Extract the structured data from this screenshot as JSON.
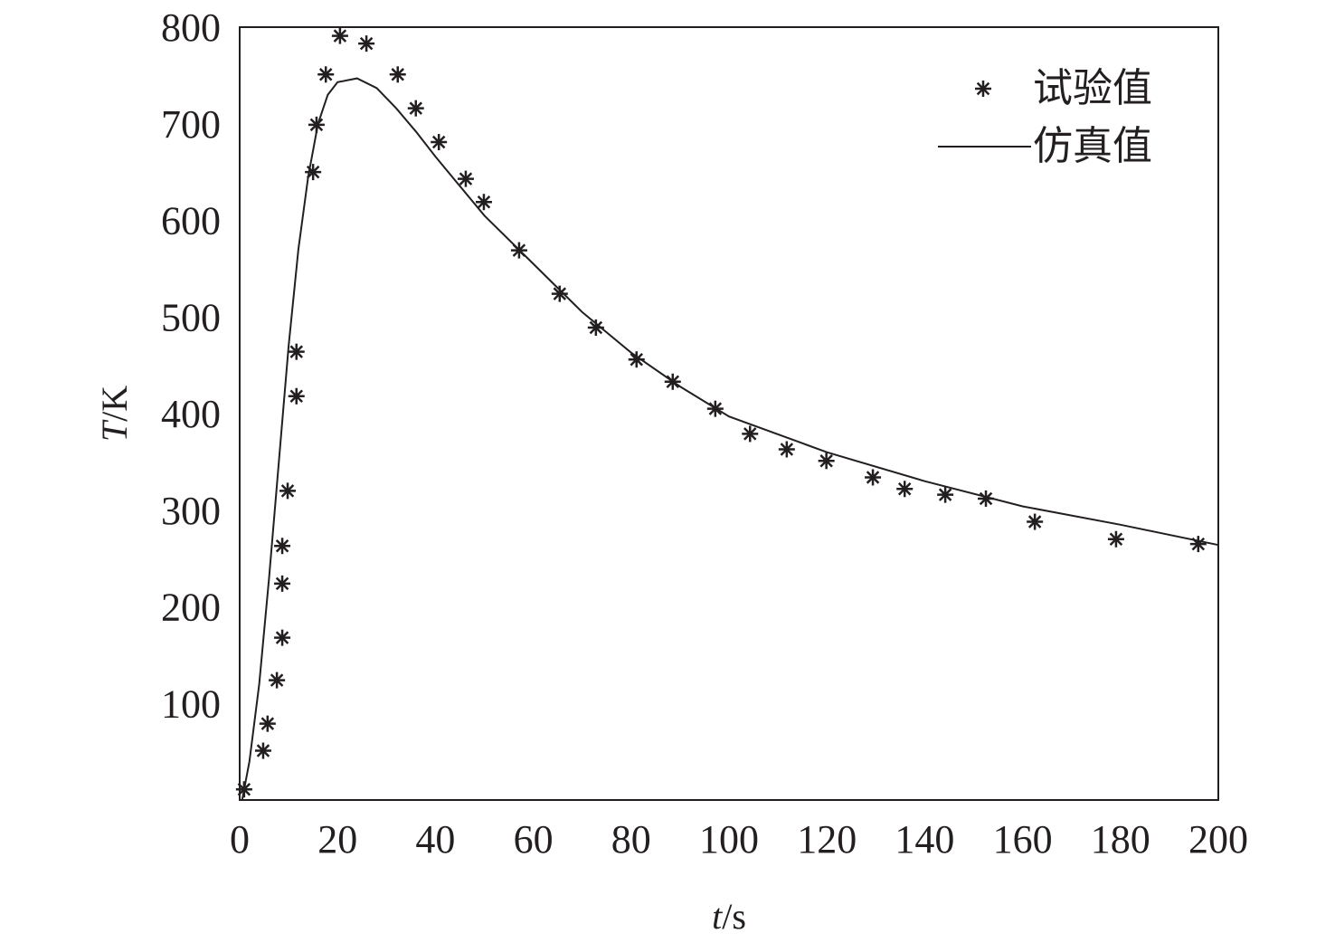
{
  "chart_data": {
    "type": "scatter+line",
    "xlabel_italic": "t",
    "xlabel_unit": "/s",
    "ylabel_italic": "T",
    "ylabel_unit": "/K",
    "xlim": [
      0,
      200
    ],
    "ylim": [
      0,
      800
    ],
    "x_ticks": [
      0,
      20,
      40,
      60,
      80,
      100,
      120,
      140,
      160,
      180,
      200
    ],
    "y_ticks": [
      100,
      200,
      300,
      400,
      500,
      600,
      700,
      800
    ],
    "grid": false,
    "legend_position": "top-right",
    "color": "#231f20",
    "series": [
      {
        "name": "试验值",
        "type": "scatter",
        "marker": "asterisk",
        "points": [
          [
            0.9,
            11
          ],
          [
            4.8,
            51
          ],
          [
            5.7,
            79
          ],
          [
            7.6,
            124
          ],
          [
            8.7,
            168
          ],
          [
            8.7,
            224
          ],
          [
            8.7,
            263
          ],
          [
            9.8,
            320
          ],
          [
            11.6,
            418
          ],
          [
            11.6,
            464
          ],
          [
            15,
            650
          ],
          [
            15.7,
            699
          ],
          [
            17.6,
            751
          ],
          [
            20.5,
            791
          ],
          [
            25.9,
            783
          ],
          [
            32.3,
            751
          ],
          [
            36,
            716
          ],
          [
            40.7,
            681
          ],
          [
            46.2,
            643
          ],
          [
            49.9,
            619
          ],
          [
            57.1,
            569
          ],
          [
            65.4,
            524
          ],
          [
            72.8,
            489
          ],
          [
            81.1,
            456
          ],
          [
            88.5,
            433
          ],
          [
            97.2,
            405
          ],
          [
            104.3,
            379
          ],
          [
            111.8,
            363
          ],
          [
            119.9,
            351
          ],
          [
            129.4,
            334
          ],
          [
            135.9,
            322
          ],
          [
            144.2,
            316
          ],
          [
            152.5,
            312
          ],
          [
            162.5,
            288
          ],
          [
            179.1,
            270
          ],
          [
            195.9,
            265
          ]
        ]
      },
      {
        "name": "仿真值",
        "type": "line",
        "points": [
          [
            0.5,
            0
          ],
          [
            2,
            40
          ],
          [
            4,
            120
          ],
          [
            6,
            230
          ],
          [
            8,
            350
          ],
          [
            10,
            470
          ],
          [
            12,
            570
          ],
          [
            14,
            645
          ],
          [
            16,
            700
          ],
          [
            18,
            730
          ],
          [
            20,
            743
          ],
          [
            24,
            747
          ],
          [
            28,
            737
          ],
          [
            32,
            716
          ],
          [
            36,
            692
          ],
          [
            40,
            666
          ],
          [
            50,
            605
          ],
          [
            60,
            555
          ],
          [
            70,
            505
          ],
          [
            80,
            463
          ],
          [
            90,
            428
          ],
          [
            100,
            397
          ],
          [
            120,
            360
          ],
          [
            140,
            330
          ],
          [
            160,
            304
          ],
          [
            180,
            285
          ],
          [
            200,
            264
          ]
        ]
      }
    ]
  }
}
